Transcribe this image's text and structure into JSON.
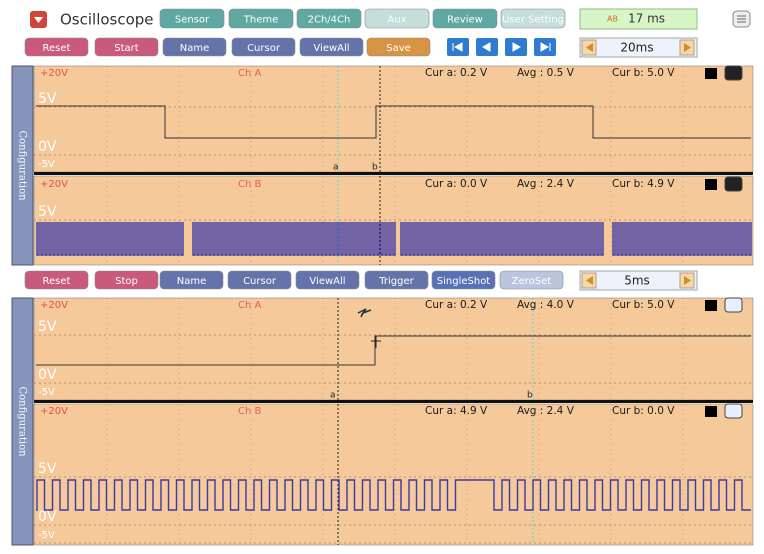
{
  "header": {
    "app_title": "Oscilloscope",
    "tabs": [
      "Sensor",
      "Theme",
      "2Ch/4Ch",
      "Aux",
      "Review",
      "User Setting"
    ],
    "time_icon": "AB",
    "time_display": "17 ms"
  },
  "scope1": {
    "toolbar": {
      "buttons": [
        "Reset",
        "Start",
        "Name",
        "Cursor",
        "ViewAll",
        "Save"
      ],
      "timebase": "20ms"
    },
    "side_label": "Configuration",
    "channels": [
      {
        "top": "+20V",
        "name": "Ch A",
        "levels": [
          "5V",
          "0V",
          "-5V"
        ],
        "readouts": [
          "Cur a: 0.2 V",
          "Avg : 0.5 V",
          "Cur b: 5.0 V"
        ],
        "markers": [
          "a",
          "b"
        ]
      },
      {
        "top": "+20V",
        "name": "Ch B",
        "levels": [
          "5V"
        ],
        "readouts": [
          "Cur a: 0.0 V",
          "Avg : 2.4 V",
          "Cur b: 4.9 V"
        ],
        "markers": []
      }
    ]
  },
  "scope2": {
    "toolbar": {
      "buttons": [
        "Reset",
        "Stop",
        "Name",
        "Cursor",
        "ViewAll",
        "Trigger",
        "SingleShot",
        "ZeroSet"
      ],
      "timebase": "5ms"
    },
    "side_label": "Configuration",
    "channels": [
      {
        "top": "+20V",
        "name": "Ch A",
        "levels": [
          "5V",
          "0V",
          "-5V"
        ],
        "readouts": [
          "Cur a: 0.2 V",
          "Avg : 4.0 V",
          "Cur b: 5.0 V"
        ],
        "markers": [
          "a",
          "b"
        ]
      },
      {
        "top": "+20V",
        "name": "Ch B",
        "levels": [
          "5V",
          "0V",
          "-5V"
        ],
        "readouts": [
          "Cur a: 4.9 V",
          "Avg : 2.4 V",
          "Cur b: 0.0 V"
        ],
        "markers": []
      }
    ]
  }
}
